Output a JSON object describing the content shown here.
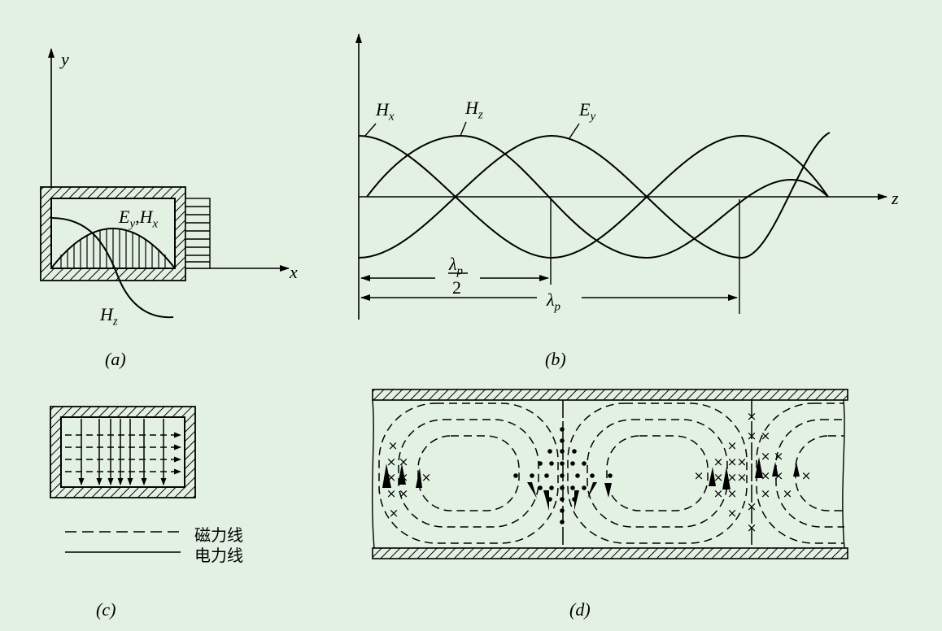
{
  "panel_a": {
    "y_axis": "y",
    "x_axis": "x",
    "label_ey_hx": "E",
    "label_ey_sub": "y",
    "label_comma_h": ",H",
    "label_hx_sub": "x",
    "label_hz": "H",
    "label_hz_sub": "z",
    "caption": "(a)"
  },
  "panel_b": {
    "label_hx": "H",
    "label_hx_sub": "x",
    "label_hz": "H",
    "label_hz_sub": "z",
    "label_ey": "E",
    "label_ey_sub": "y",
    "z_axis": "z",
    "half_lambda_num": "λ",
    "half_lambda_sub": "p",
    "half_lambda_den": "2",
    "lambda": "λ",
    "lambda_sub": "p",
    "caption": "(b)"
  },
  "panel_c": {
    "legend_dashed": "磁力线",
    "legend_solid": "电力线",
    "caption": "(c)"
  },
  "panel_d": {
    "caption": "(d)"
  },
  "colors": {
    "background": "#e3f1e3",
    "ink": "#000000"
  }
}
